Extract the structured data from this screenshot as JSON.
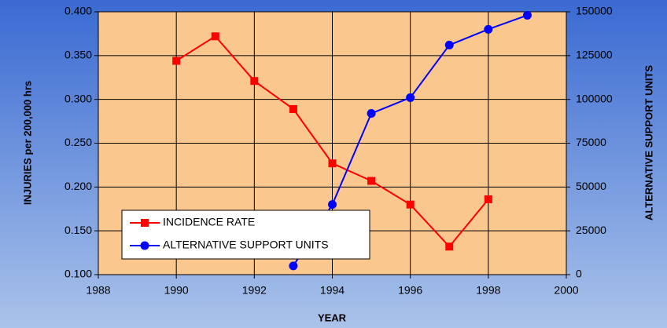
{
  "chart_data": {
    "type": "line",
    "xlabel": "YEAR",
    "ylabel": "INJURIES per 200,000 hrs",
    "y2label": "ALTERNATIVE SUPPORT UNITS",
    "xlim": [
      1988,
      2000
    ],
    "xticks": [
      1988,
      1990,
      1992,
      1994,
      1996,
      1998,
      2000
    ],
    "ylim": [
      0.1,
      0.4
    ],
    "yticks": [
      {
        "value": 0.1,
        "label": "0.100"
      },
      {
        "value": 0.15,
        "label": "0.150"
      },
      {
        "value": 0.2,
        "label": "0.200"
      },
      {
        "value": 0.25,
        "label": "0.250"
      },
      {
        "value": 0.3,
        "label": "0.300"
      },
      {
        "value": 0.35,
        "label": "0.350"
      },
      {
        "value": 0.4,
        "label": "0.400"
      }
    ],
    "y2lim": [
      0,
      150000
    ],
    "y2ticks": [
      0,
      25000,
      50000,
      75000,
      100000,
      125000,
      150000
    ],
    "grid": true,
    "legend": "lower left",
    "series": [
      {
        "name": "INCIDENCE RATE",
        "color": "#ff0000",
        "marker": "square",
        "x": [
          1990,
          1991,
          1992,
          1993,
          1994,
          1995,
          1996,
          1997,
          1998
        ],
        "values": [
          0.344,
          0.372,
          0.321,
          0.289,
          0.227,
          0.207,
          0.18,
          0.132,
          0.186
        ]
      },
      {
        "name": "ALTERNATIVE SUPPORT UNITS",
        "color": "#0000ff",
        "marker": "circle",
        "axis": "y2",
        "x": [
          1993,
          1994,
          1995,
          1996,
          1997,
          1998,
          1999
        ],
        "values": [
          5000,
          40000,
          92000,
          101000,
          131000,
          140000,
          148000
        ]
      }
    ]
  }
}
